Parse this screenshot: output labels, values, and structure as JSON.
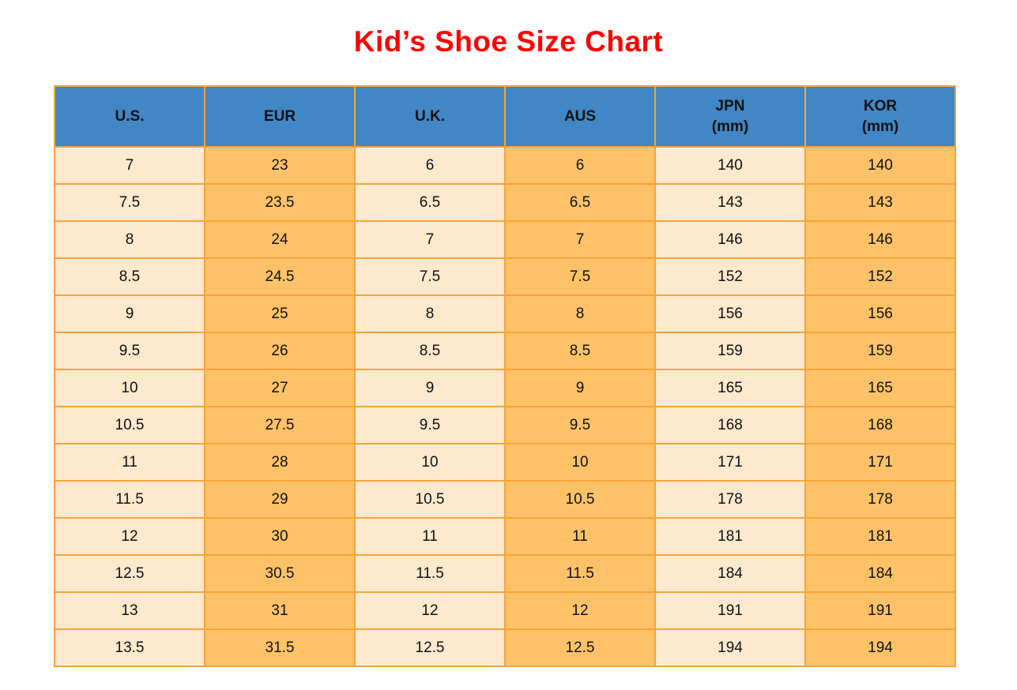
{
  "page": {
    "title": "Kid’s Shoe Size Chart"
  },
  "colors": {
    "title": "#FF0000",
    "header_bg": "#4186C5",
    "cell_light": "#FDE9CD",
    "cell_orange": "#FDC268",
    "border": "#F6A43B",
    "text": "#111111"
  },
  "table": {
    "headers": [
      {
        "line1": "U.S.",
        "line2": ""
      },
      {
        "line1": "EUR",
        "line2": ""
      },
      {
        "line1": "U.K.",
        "line2": ""
      },
      {
        "line1": "AUS",
        "line2": ""
      },
      {
        "line1": "JPN",
        "line2": "(mm)"
      },
      {
        "line1": "KOR",
        "line2": "(mm)"
      }
    ]
  },
  "chart_data": {
    "type": "table",
    "title": "Kid’s Shoe Size Chart",
    "columns": [
      "U.S.",
      "EUR",
      "U.K.",
      "AUS",
      "JPN (mm)",
      "KOR (mm)"
    ],
    "rows": [
      [
        "7",
        "23",
        "6",
        "6",
        "140",
        "140"
      ],
      [
        "7.5",
        "23.5",
        "6.5",
        "6.5",
        "143",
        "143"
      ],
      [
        "8",
        "24",
        "7",
        "7",
        "146",
        "146"
      ],
      [
        "8.5",
        "24.5",
        "7.5",
        "7.5",
        "152",
        "152"
      ],
      [
        "9",
        "25",
        "8",
        "8",
        "156",
        "156"
      ],
      [
        "9.5",
        "26",
        "8.5",
        "8.5",
        "159",
        "159"
      ],
      [
        "10",
        "27",
        "9",
        "9",
        "165",
        "165"
      ],
      [
        "10.5",
        "27.5",
        "9.5",
        "9.5",
        "168",
        "168"
      ],
      [
        "11",
        "28",
        "10",
        "10",
        "171",
        "171"
      ],
      [
        "11.5",
        "29",
        "10.5",
        "10.5",
        "178",
        "178"
      ],
      [
        "12",
        "30",
        "11",
        "11",
        "181",
        "181"
      ],
      [
        "12.5",
        "30.5",
        "11.5",
        "11.5",
        "184",
        "184"
      ],
      [
        "13",
        "31",
        "12",
        "12",
        "191",
        "191"
      ],
      [
        "13.5",
        "31.5",
        "12.5",
        "12.5",
        "194",
        "194"
      ]
    ]
  }
}
